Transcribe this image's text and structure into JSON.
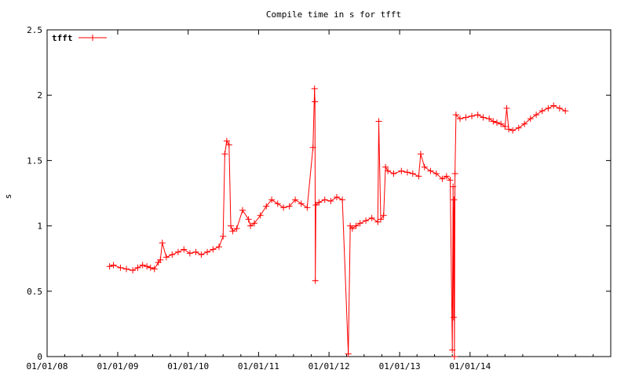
{
  "chart_data": {
    "type": "line",
    "title": "Compile time in s for tfft",
    "xlabel": "",
    "ylabel": "s",
    "xlim": [
      "2008-01-01",
      "2015-12-31"
    ],
    "ylim": [
      0,
      2.5
    ],
    "yticks": [
      "0",
      "0.5",
      "1",
      "1.5",
      "2",
      "2.5"
    ],
    "xticks": [
      "01/01/08",
      "01/01/09",
      "01/01/10",
      "01/01/11",
      "01/01/12",
      "01/01/13",
      "01/01/14"
    ],
    "xtick_dates": [
      "2008-01-01",
      "2009-01-01",
      "2010-01-01",
      "2011-01-01",
      "2012-01-01",
      "2013-01-01",
      "2014-01-01"
    ],
    "grid": false,
    "legend": "top-left",
    "series": [
      {
        "name": "tfft",
        "color": "#ff0000",
        "marker": "plus",
        "x": [
          "2008-11-20",
          "2008-12-10",
          "2009-01-15",
          "2009-02-15",
          "2009-03-20",
          "2009-04-15",
          "2009-05-10",
          "2009-06-01",
          "2009-06-20",
          "2009-07-10",
          "2009-07-30",
          "2009-08-10",
          "2009-08-20",
          "2009-09-10",
          "2009-10-10",
          "2009-11-10",
          "2009-12-10",
          "2010-01-10",
          "2010-02-10",
          "2010-03-10",
          "2010-04-10",
          "2010-05-10",
          "2010-06-10",
          "2010-07-01",
          "2010-07-10",
          "2010-07-20",
          "2010-08-01",
          "2010-08-10",
          "2010-08-20",
          "2010-09-10",
          "2010-10-10",
          "2010-11-10",
          "2010-11-20",
          "2010-12-10",
          "2011-01-10",
          "2011-02-10",
          "2011-03-10",
          "2011-04-10",
          "2011-05-10",
          "2011-06-10",
          "2011-07-10",
          "2011-08-10",
          "2011-09-10",
          "2011-10-10",
          "2011-10-18",
          "2011-10-20",
          "2011-10-22",
          "2011-10-25",
          "2011-11-10",
          "2011-12-10",
          "2012-01-10",
          "2012-02-10",
          "2012-03-10",
          "2012-04-10",
          "2012-04-20",
          "2012-05-01",
          "2012-05-20",
          "2012-06-10",
          "2012-07-10",
          "2012-08-10",
          "2012-09-10",
          "2012-09-15",
          "2012-09-25",
          "2012-10-10",
          "2012-10-20",
          "2012-11-01",
          "2012-12-01",
          "2013-01-10",
          "2013-02-10",
          "2013-03-10",
          "2013-04-10",
          "2013-04-20",
          "2013-05-10",
          "2013-06-10",
          "2013-07-10",
          "2013-08-10",
          "2013-09-01",
          "2013-09-20",
          "2013-10-01",
          "2013-10-05",
          "2013-10-08",
          "2013-10-10",
          "2013-10-12",
          "2013-10-15",
          "2013-10-20",
          "2013-11-10",
          "2013-12-10",
          "2014-01-10",
          "2014-02-10",
          "2014-03-10",
          "2014-04-10",
          "2014-05-01",
          "2014-05-20",
          "2014-06-10",
          "2014-07-01",
          "2014-07-10",
          "2014-07-20",
          "2014-08-10",
          "2014-09-10",
          "2014-10-10",
          "2014-11-10",
          "2014-12-10",
          "2015-01-10",
          "2015-02-10",
          "2015-03-10",
          "2015-04-10",
          "2015-05-10"
        ],
        "y": [
          0.69,
          0.7,
          0.68,
          0.67,
          0.66,
          0.68,
          0.7,
          0.69,
          0.68,
          0.67,
          0.72,
          0.74,
          0.87,
          0.76,
          0.78,
          0.8,
          0.82,
          0.79,
          0.8,
          0.78,
          0.8,
          0.82,
          0.84,
          0.92,
          1.55,
          1.65,
          1.62,
          1.0,
          0.96,
          0.98,
          1.12,
          1.05,
          1.0,
          1.02,
          1.08,
          1.15,
          1.2,
          1.17,
          1.14,
          1.15,
          1.2,
          1.17,
          1.14,
          1.6,
          2.05,
          1.95,
          0.58,
          1.16,
          1.18,
          1.2,
          1.19,
          1.22,
          1.2,
          0.02,
          1.0,
          0.98,
          1.0,
          1.02,
          1.04,
          1.06,
          1.03,
          1.8,
          1.05,
          1.08,
          1.45,
          1.42,
          1.4,
          1.42,
          1.41,
          1.4,
          1.38,
          1.55,
          1.45,
          1.42,
          1.4,
          1.36,
          1.38,
          1.35,
          0.05,
          1.3,
          0.3,
          1.2,
          0.0,
          1.4,
          1.85,
          1.82,
          1.83,
          1.84,
          1.85,
          1.83,
          1.82,
          1.8,
          1.79,
          1.78,
          1.76,
          1.9,
          1.74,
          1.73,
          1.75,
          1.78,
          1.82,
          1.85,
          1.88,
          1.9,
          1.92,
          1.9,
          1.88
        ]
      }
    ]
  }
}
